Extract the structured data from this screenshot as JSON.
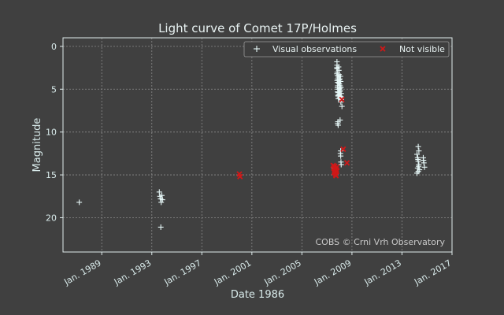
{
  "chart_data": {
    "type": "scatter",
    "title": "Light curve of Comet 17P/Holmes",
    "xlabel": "Date 1986",
    "ylabel": "Magnitude",
    "credit": "COBS © Crni Vrh Observatory",
    "x_unit": "year",
    "xlim": [
      1985.9,
      2017.0
    ],
    "ylim": [
      24.0,
      -1.0
    ],
    "y_inverted": true,
    "x_ticks": [
      {
        "value": 1989.0,
        "label": "Jan. 1989"
      },
      {
        "value": 1993.0,
        "label": "Jan. 1993"
      },
      {
        "value": 1997.0,
        "label": "Jan. 1997"
      },
      {
        "value": 2001.0,
        "label": "Jan. 2001"
      },
      {
        "value": 2005.0,
        "label": "Jan. 2005"
      },
      {
        "value": 2009.0,
        "label": "Jan. 2009"
      },
      {
        "value": 2013.0,
        "label": "Jan. 2013"
      },
      {
        "value": 2017.0,
        "label": "Jan. 2017"
      }
    ],
    "y_ticks": [
      {
        "value": 0,
        "label": "0"
      },
      {
        "value": 5,
        "label": "5"
      },
      {
        "value": 10,
        "label": "10"
      },
      {
        "value": 15,
        "label": "15"
      },
      {
        "value": 20,
        "label": "20"
      }
    ],
    "grid": true,
    "legend_position": "top-right",
    "colors": {
      "background": "#404040",
      "axes": "#e0ecec",
      "grid": "#8a8a8a",
      "visual": "#e6f7f7",
      "not_visible": "#d01818",
      "legend_bg": "#3e3e3e"
    },
    "series": [
      {
        "name": "Visual observations",
        "marker": "plus",
        "points": [
          [
            1987.2,
            18.2
          ],
          [
            1993.6,
            17.0
          ],
          [
            1993.65,
            17.5
          ],
          [
            1993.7,
            17.8
          ],
          [
            1993.75,
            18.2
          ],
          [
            1993.8,
            17.4
          ],
          [
            1993.72,
            21.1
          ],
          [
            1993.85,
            17.9
          ],
          [
            2007.8,
            1.8
          ],
          [
            2007.81,
            2.2
          ],
          [
            2007.82,
            2.6
          ],
          [
            2007.83,
            3.0
          ],
          [
            2007.84,
            3.4
          ],
          [
            2007.85,
            3.8
          ],
          [
            2007.86,
            4.2
          ],
          [
            2007.87,
            4.6
          ],
          [
            2007.88,
            5.0
          ],
          [
            2007.89,
            5.4
          ],
          [
            2007.9,
            5.8
          ],
          [
            2007.91,
            6.1
          ],
          [
            2007.79,
            2.5
          ],
          [
            2007.8,
            3.2
          ],
          [
            2007.82,
            4.0
          ],
          [
            2007.84,
            4.8
          ],
          [
            2007.86,
            5.3
          ],
          [
            2007.88,
            5.7
          ],
          [
            2007.93,
            2.4
          ],
          [
            2007.95,
            2.8
          ],
          [
            2007.97,
            3.3
          ],
          [
            2007.99,
            3.9
          ],
          [
            2008.0,
            4.4
          ],
          [
            2008.02,
            4.9
          ],
          [
            2008.04,
            5.3
          ],
          [
            2008.06,
            5.8
          ],
          [
            2007.92,
            3.6
          ],
          [
            2007.94,
            4.3
          ],
          [
            2007.96,
            5.0
          ],
          [
            2007.98,
            5.6
          ],
          [
            2008.01,
            6.0
          ],
          [
            2008.03,
            3.8
          ],
          [
            2008.05,
            4.6
          ],
          [
            2008.07,
            5.1
          ],
          [
            2008.08,
            3.5
          ],
          [
            2008.1,
            4.1
          ],
          [
            2008.12,
            4.8
          ],
          [
            2008.14,
            5.5
          ],
          [
            2008.15,
            6.2
          ],
          [
            2008.11,
            6.5
          ],
          [
            2008.13,
            5.9
          ],
          [
            2008.2,
            7.0
          ],
          [
            2008.05,
            8.6
          ],
          [
            2007.88,
            8.8
          ],
          [
            2007.9,
            9.2
          ],
          [
            2007.86,
            9.0
          ],
          [
            2008.1,
            12.2
          ],
          [
            2008.1,
            12.8
          ],
          [
            2008.12,
            13.5
          ],
          [
            2008.08,
            12.5
          ],
          [
            2008.14,
            13.8
          ],
          [
            2007.6,
            14.2
          ],
          [
            2007.7,
            14.6
          ],
          [
            2014.3,
            11.7
          ],
          [
            2014.35,
            12.2
          ],
          [
            2014.2,
            12.6
          ],
          [
            2014.25,
            13.0
          ],
          [
            2014.3,
            13.4
          ],
          [
            2014.35,
            13.8
          ],
          [
            2014.25,
            14.2
          ],
          [
            2014.3,
            14.6
          ],
          [
            2014.2,
            14.8
          ],
          [
            2014.4,
            14.4
          ],
          [
            2014.28,
            13.2
          ],
          [
            2014.33,
            14.0
          ],
          [
            2014.7,
            13.0
          ],
          [
            2014.75,
            13.6
          ],
          [
            2014.8,
            14.1
          ],
          [
            2014.72,
            13.3
          ]
        ]
      },
      {
        "name": "Not visible",
        "marker": "x",
        "points": [
          [
            2000.0,
            14.9
          ],
          [
            2000.05,
            15.2
          ],
          [
            2007.5,
            13.9
          ],
          [
            2007.55,
            14.2
          ],
          [
            2007.6,
            14.5
          ],
          [
            2007.65,
            14.8
          ],
          [
            2007.7,
            15.0
          ],
          [
            2007.75,
            14.4
          ],
          [
            2007.8,
            14.1
          ],
          [
            2007.58,
            14.7
          ],
          [
            2007.68,
            14.3
          ],
          [
            2007.72,
            15.1
          ],
          [
            2007.62,
            14.0
          ],
          [
            2007.78,
            14.6
          ],
          [
            2008.2,
            6.2
          ],
          [
            2008.3,
            12.0
          ],
          [
            2008.6,
            13.6
          ]
        ]
      }
    ]
  }
}
